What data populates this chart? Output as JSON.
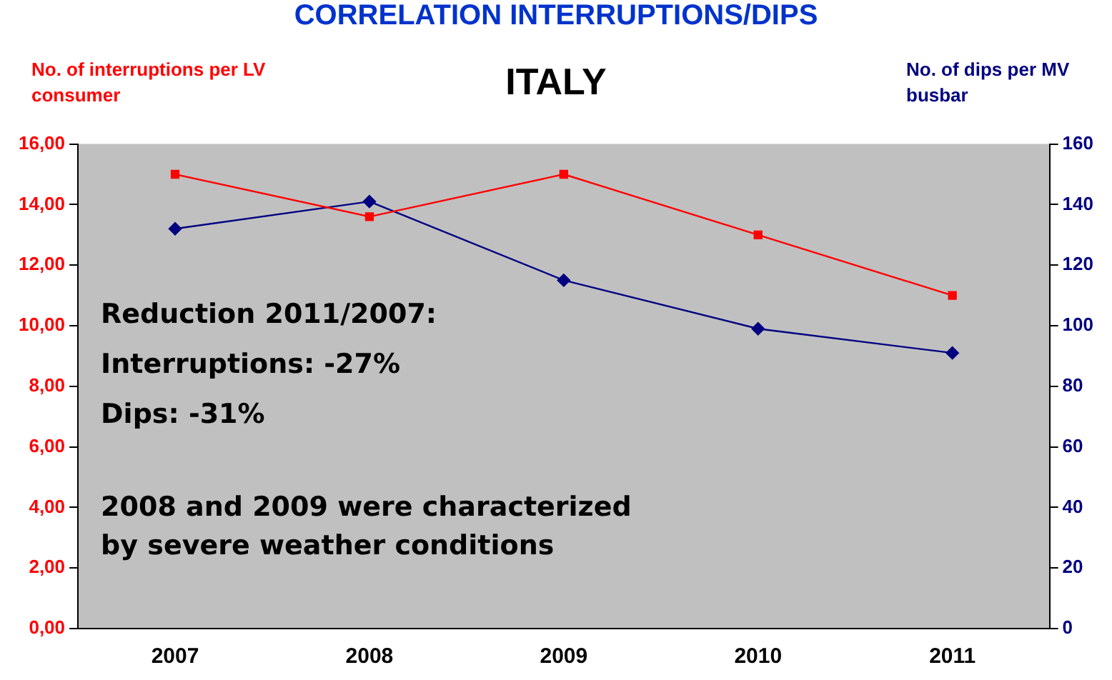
{
  "chart_data": {
    "type": "line",
    "title": "CORRELATION INTERRUPTIONS/DIPS",
    "subtitle": "ITALY",
    "ylabel": "No. of interruptions per LV consumer",
    "y2label": "No. of dips per MV busbar",
    "categories": [
      "2007",
      "2008",
      "2009",
      "2010",
      "2011"
    ],
    "series": [
      {
        "color": "#ff0000",
        "values": [
          15.0,
          13.6,
          15.0,
          13.0,
          11.0
        ],
        "marker": "square"
      },
      {
        "color": "#000080",
        "values": [
          132,
          141,
          115,
          99,
          91
        ],
        "axis": "y2",
        "marker": "diamond"
      }
    ],
    "ylim": [
      0,
      16
    ],
    "yticks": [
      {
        "value": 0,
        "label": "0,00"
      },
      {
        "value": 2,
        "label": "2,00"
      },
      {
        "value": 4,
        "label": "4,00"
      },
      {
        "value": 6,
        "label": "6,00"
      },
      {
        "value": 8,
        "label": "8,00"
      },
      {
        "value": 10,
        "label": "10,00"
      },
      {
        "value": 12,
        "label": "12,00"
      },
      {
        "value": 14,
        "label": "14,00"
      },
      {
        "value": 16,
        "label": "16,00"
      }
    ],
    "y2lim": [
      0,
      160
    ],
    "y2ticks": [
      0,
      20,
      40,
      60,
      80,
      100,
      120,
      140,
      160
    ],
    "grid": false,
    "legend": false,
    "annotations": [
      "Reduction 2011/2007:",
      "Interruptions: -27%",
      "Dips: -31%",
      "2008 and 2009 were characterized by severe weather conditions"
    ]
  }
}
